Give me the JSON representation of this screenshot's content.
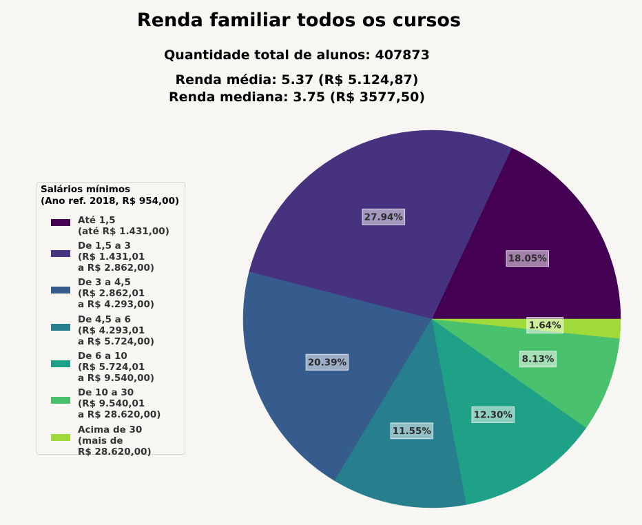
{
  "chart_data": {
    "type": "pie",
    "title": "Renda familiar todos os cursos",
    "subtitle_lines": [
      "Quantidade total de alunos: 407873",
      "Renda média: 5.37 (R$ 5.124,87)",
      "Renda mediana: 3.75 (R$ 3577,50)"
    ],
    "legend_title": "Salários mínimos\n(Ano ref. 2018, R$ 954,00)",
    "legend_placement": "left",
    "slices": [
      {
        "label": "Até 1,5\n(até R$ 1.431,00)",
        "value": 18.05,
        "display": "18.05%",
        "color": "#440154"
      },
      {
        "label": "De 1,5 a 3\n(R$ 1.431,01\na R$ 2.862,00)",
        "value": 27.94,
        "display": "27.94%",
        "color": "#46327e"
      },
      {
        "label": "De 3 a 4,5\n(R$ 2.862,01\na R$ 4.293,00)",
        "value": 20.39,
        "display": "20.39%",
        "color": "#365c8d"
      },
      {
        "label": "De 4,5 a 6\n(R$ 4.293,01\na R$ 5.724,00)",
        "value": 11.55,
        "display": "11.55%",
        "color": "#277f8e"
      },
      {
        "label": "De 6 a 10\n(R$ 5.724,01\na R$ 9.540,00)",
        "value": 12.3,
        "display": "12.30%",
        "color": "#1fa187"
      },
      {
        "label": "De 10 a 30\n(R$ 9.540,01\na R$ 28.620,00)",
        "value": 8.13,
        "display": "8.13%",
        "color": "#4ac16d"
      },
      {
        "label": "Acima de 30\n(mais de\nR$ 28.620,00)",
        "value": 1.64,
        "display": "1.64%",
        "color": "#a0da39"
      }
    ]
  }
}
